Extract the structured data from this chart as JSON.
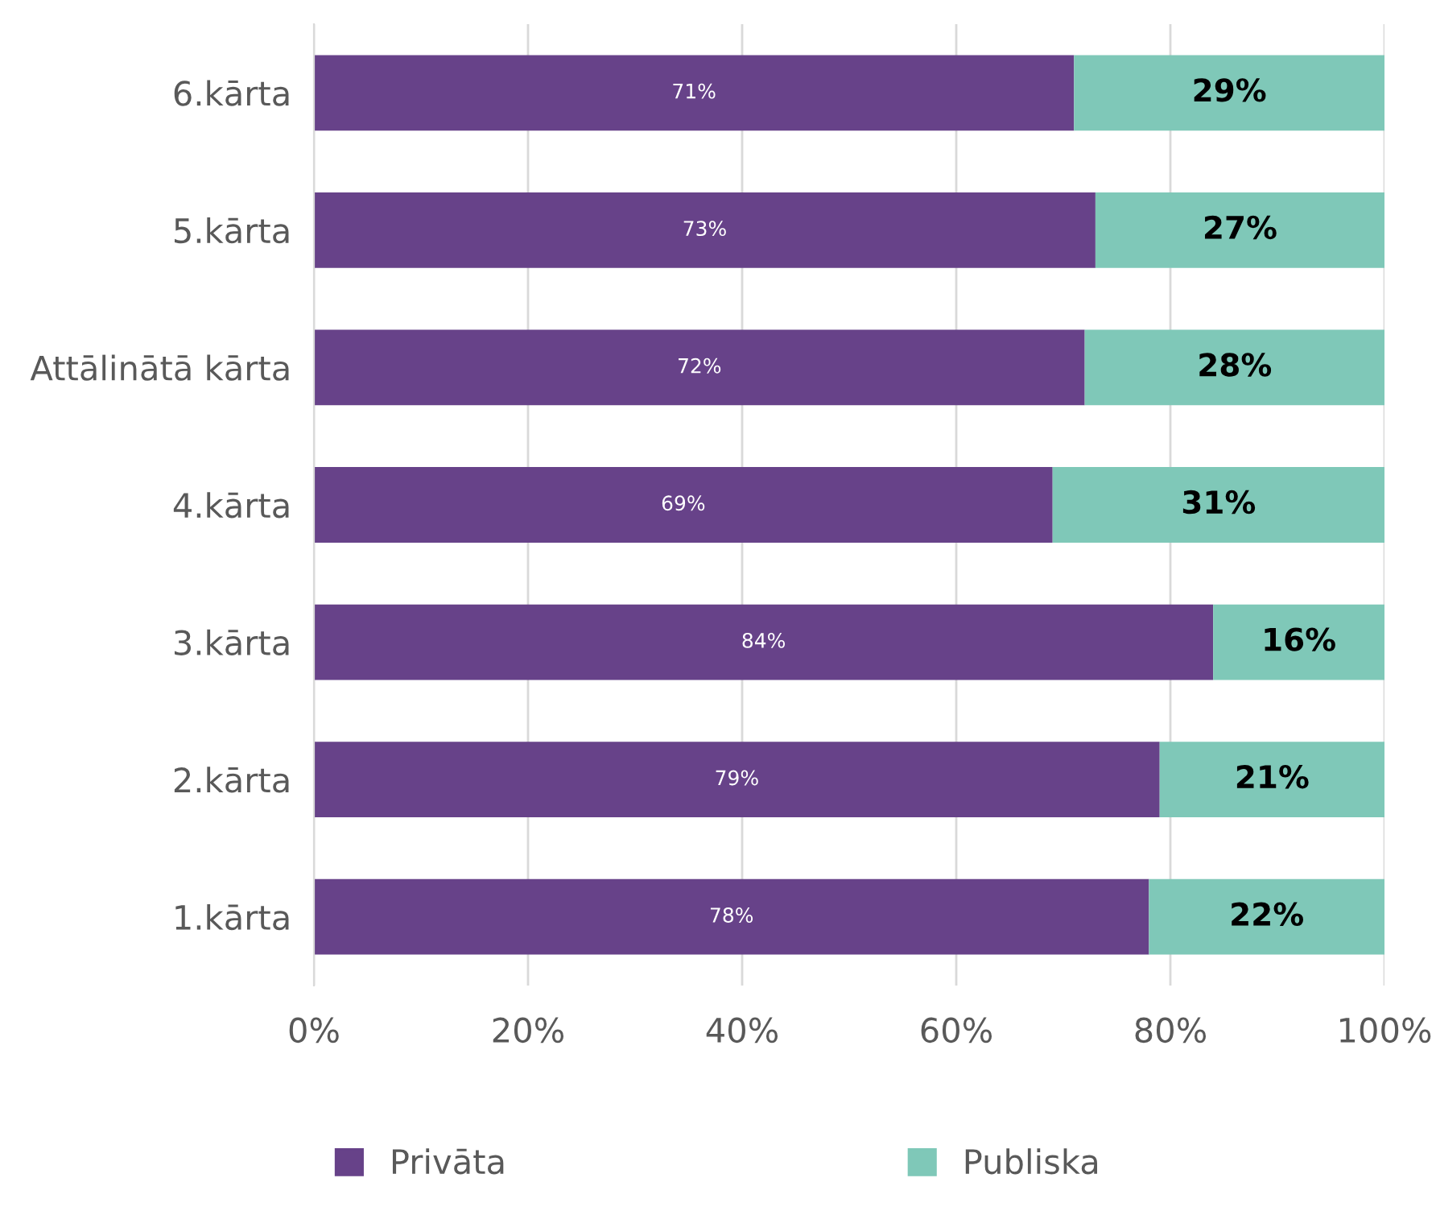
{
  "chart_data": {
    "type": "bar",
    "orientation": "horizontal",
    "stacked": true,
    "categories": [
      "6.kārta",
      "5.kārta",
      "Attālinātā kārta",
      "4.kārta",
      "3.kārta",
      "2.kārta",
      "1.kārta"
    ],
    "series": [
      {
        "name": "Privāta",
        "color": "#674289",
        "values": [
          71,
          73,
          72,
          69,
          84,
          79,
          78
        ],
        "value_labels": [
          "71%",
          "73%",
          "72%",
          "69%",
          "84%",
          "79%",
          "78%"
        ]
      },
      {
        "name": "Publiska",
        "color": "#7fc8b8",
        "values": [
          29,
          27,
          28,
          31,
          16,
          21,
          22
        ],
        "value_labels": [
          "29%",
          "27%",
          "28%",
          "31%",
          "16%",
          "21%",
          "22%"
        ]
      }
    ],
    "xlim": [
      0,
      100
    ],
    "xticks": [
      {
        "value": 0,
        "label": "0%"
      },
      {
        "value": 20,
        "label": "20%"
      },
      {
        "value": 40,
        "label": "40%"
      },
      {
        "value": 60,
        "label": "60%"
      },
      {
        "value": 80,
        "label": "80%"
      },
      {
        "value": 100,
        "label": "100%"
      }
    ],
    "grid": "x",
    "legend": "bottom"
  }
}
